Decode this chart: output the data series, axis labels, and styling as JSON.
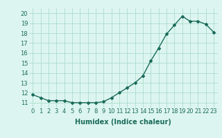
{
  "x": [
    0,
    1,
    2,
    3,
    4,
    5,
    6,
    7,
    8,
    9,
    10,
    11,
    12,
    13,
    14,
    15,
    16,
    17,
    18,
    19,
    20,
    21,
    22,
    23
  ],
  "y": [
    11.8,
    11.5,
    11.2,
    11.2,
    11.2,
    11.0,
    11.0,
    11.0,
    11.0,
    11.1,
    11.5,
    12.0,
    12.5,
    13.0,
    13.7,
    15.2,
    16.5,
    17.9,
    18.8,
    19.7,
    19.2,
    19.2,
    18.9,
    18.1
  ],
  "xlabel": "Humidex (Indice chaleur)",
  "ylabel": "",
  "xlim": [
    -0.5,
    23.5
  ],
  "ylim": [
    10.5,
    20.5
  ],
  "yticks": [
    11,
    12,
    13,
    14,
    15,
    16,
    17,
    18,
    19,
    20
  ],
  "xticks": [
    0,
    1,
    2,
    3,
    4,
    5,
    6,
    7,
    8,
    9,
    10,
    11,
    12,
    13,
    14,
    15,
    16,
    17,
    18,
    19,
    20,
    21,
    22,
    23
  ],
  "line_color": "#1a6b5a",
  "marker": "D",
  "marker_size": 2.0,
  "bg_color": "#ddf5f0",
  "grid_color": "#aaddcc",
  "xlabel_fontsize": 7.0,
  "tick_fontsize": 6.0,
  "line_width": 1.0
}
